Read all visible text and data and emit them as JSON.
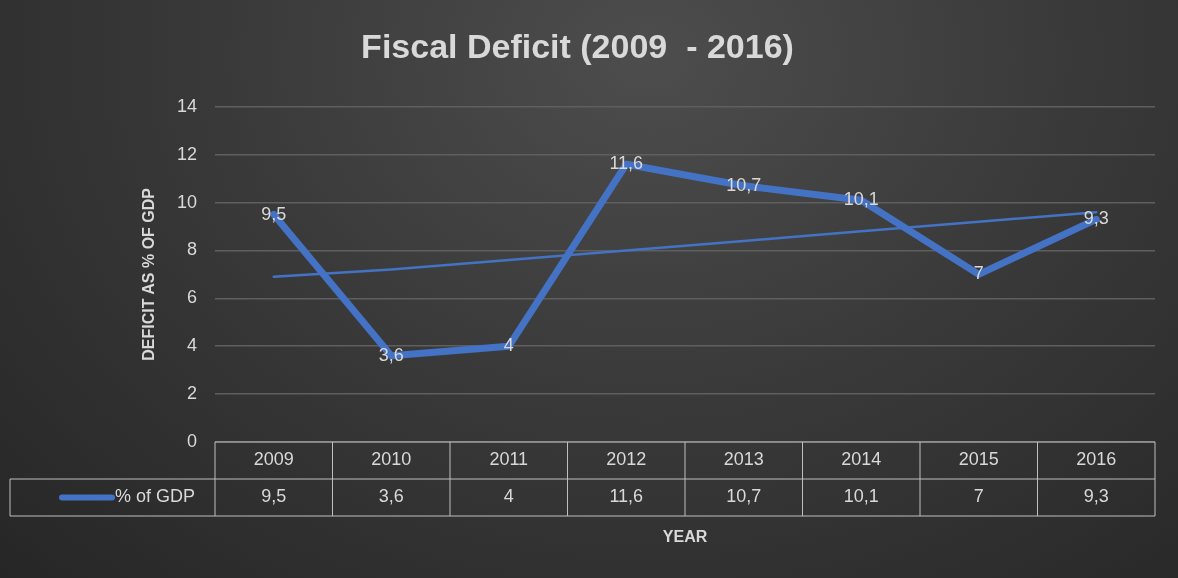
{
  "chart_data": {
    "type": "line",
    "title": "Fiscal Deficit (2009  - 2016)",
    "xlabel": "YEAR",
    "ylabel": "DEFICIT AS % OF GDP",
    "categories": [
      "2009",
      "2010",
      "2011",
      "2012",
      "2013",
      "2014",
      "2015",
      "2016"
    ],
    "series": [
      {
        "name": "% of GDP",
        "color": "#4472c4",
        "values": [
          9.5,
          3.6,
          4,
          11.6,
          10.7,
          10.1,
          7,
          9.3
        ],
        "value_labels": [
          "9,5",
          "3,6",
          "4",
          "11,6",
          "10,7",
          "10,1",
          "7",
          "9,3"
        ]
      },
      {
        "type": "line",
        "color": "#4472c4",
        "values": [
          6.9,
          7.2,
          7.6,
          8.0,
          8.4,
          8.8,
          9.2,
          9.6
        ]
      }
    ],
    "ylim": [
      0,
      14
    ],
    "yticks": [
      0,
      2,
      4,
      6,
      8,
      10,
      12,
      14
    ],
    "grid": "y",
    "legend": "bottom",
    "marker": "none",
    "line_style": "solid"
  }
}
